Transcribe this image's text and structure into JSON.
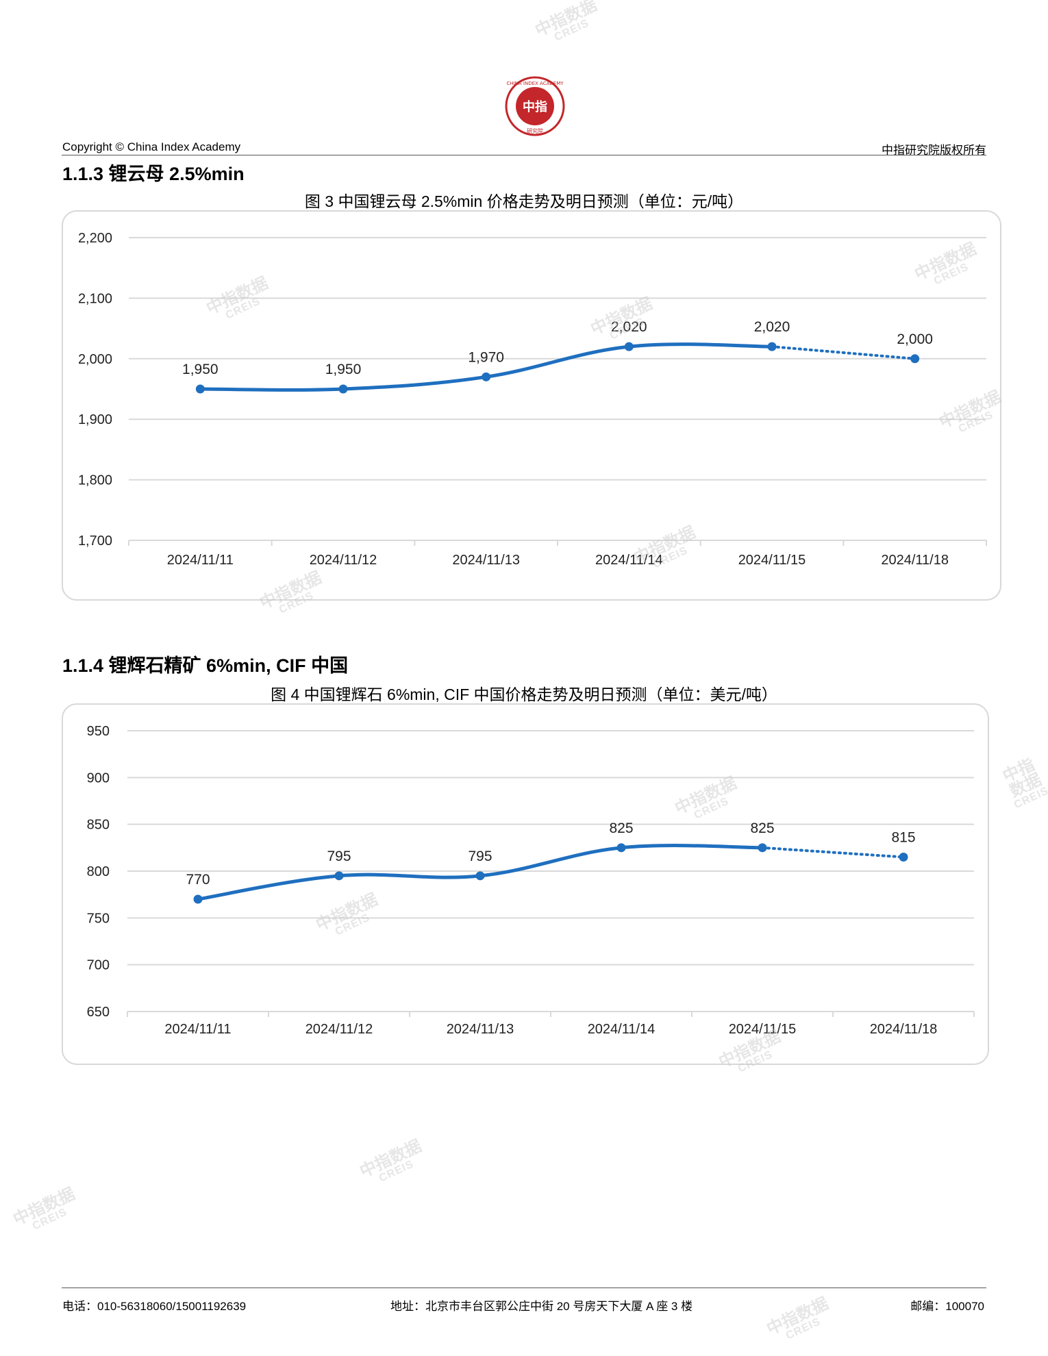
{
  "header": {
    "logo_text": "CHINA INDEX ACADEMY",
    "logo_center": "中指",
    "logo_bottom": "研究院",
    "copyright": "Copyright © China Index Academy",
    "rights": "中指研究院版权所有"
  },
  "watermark": {
    "line1": "中指数据",
    "line2": "CREIS"
  },
  "section3": {
    "title": "1.1.3 锂云母 2.5%min",
    "figure_title": "图 3 中国锂云母 2.5%min 价格走势及明日预测（单位：元/吨）"
  },
  "section4": {
    "title": "1.1.4 锂辉石精矿 6%min, CIF 中国",
    "figure_title": "图 4 中国锂辉石 6%min, CIF 中国价格走势及明日预测（单位：美元/吨）"
  },
  "chart_data": [
    {
      "type": "line",
      "title": "图 3 中国锂云母 2.5%min 价格走势及明日预测（单位：元/吨）",
      "categories": [
        "2024/11/11",
        "2024/11/12",
        "2024/11/13",
        "2024/11/14",
        "2024/11/15",
        "2024/11/18"
      ],
      "values": [
        1950,
        1950,
        1970,
        2020,
        2020,
        2000
      ],
      "value_labels": [
        "1,950",
        "1,950",
        "1,970",
        "2,020",
        "2,020",
        "2,000"
      ],
      "forecast_from_index": 4,
      "ylim": [
        1700,
        2200
      ],
      "yticks": [
        2200,
        2100,
        2000,
        1900,
        1800,
        1700
      ],
      "ytick_labels": [
        "2,200",
        "2,100",
        "2,000",
        "1,900",
        "1,800",
        "1,700"
      ],
      "grid": true,
      "color": "#1f6fbf"
    },
    {
      "type": "line",
      "title": "图 4 中国锂辉石 6%min, CIF 中国价格走势及明日预测（单位：美元/吨）",
      "categories": [
        "2024/11/11",
        "2024/11/12",
        "2024/11/13",
        "2024/11/14",
        "2024/11/15",
        "2024/11/18"
      ],
      "values": [
        770,
        795,
        795,
        825,
        825,
        815
      ],
      "value_labels": [
        "770",
        "795",
        "795",
        "825",
        "825",
        "815"
      ],
      "forecast_from_index": 4,
      "ylim": [
        650,
        950
      ],
      "yticks": [
        950,
        900,
        850,
        800,
        750,
        700,
        650
      ],
      "ytick_labels": [
        "950",
        "900",
        "850",
        "800",
        "750",
        "700",
        "650"
      ],
      "grid": true,
      "color": "#1f6fbf"
    }
  ],
  "footer": {
    "phone": "电话：010-56318060/15001192639",
    "address": "地址：北京市丰台区郭公庄中街 20 号房天下大厦 A 座 3 楼",
    "postcode": "邮编：100070"
  }
}
